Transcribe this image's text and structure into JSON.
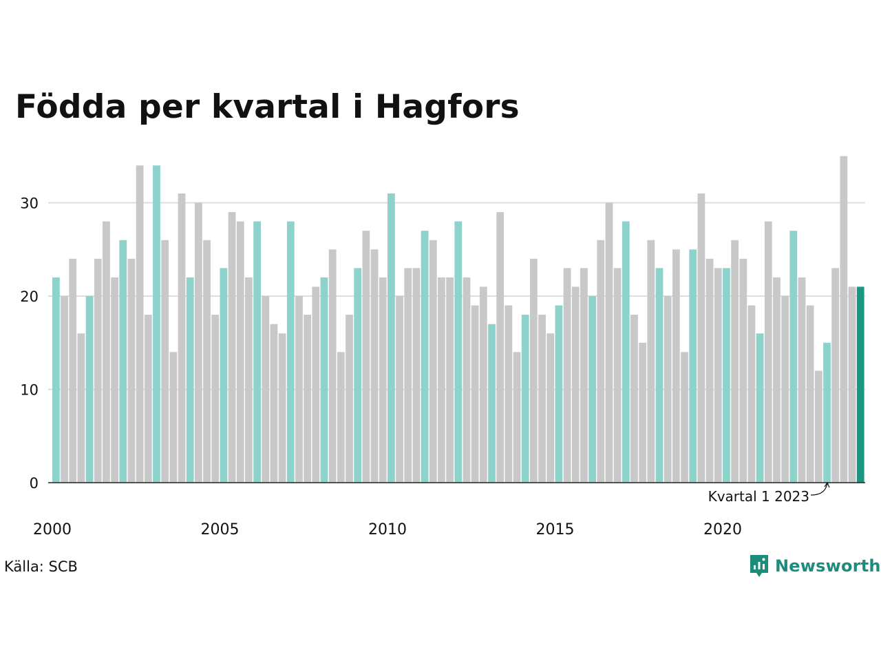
{
  "title": "Födda per kvartal i Hagfors",
  "source": "Källa: SCB",
  "brand": "Newsworthy",
  "annotation": "Kvartal 1 2023",
  "colors": {
    "q1": "#8dd3cc",
    "other": "#c8c8c8",
    "highlight": "#1a9683",
    "brand": "#1c8c7c",
    "grid": "#dddddd",
    "axis": "#222222"
  },
  "chart_data": {
    "type": "bar",
    "title": "Födda per kvartal i Hagfors",
    "xlabel": "",
    "ylabel": "",
    "ylim": [
      0,
      35
    ],
    "yticks": [
      0,
      10,
      20,
      30
    ],
    "xtick_labels": [
      "2000",
      "2005",
      "2010",
      "2015",
      "2020"
    ],
    "grid": true,
    "start_year": 2000,
    "quarters_per_year": 4,
    "highlight_quarter": "Kvartal 1 2023",
    "values": [
      22,
      20,
      24,
      16,
      20,
      24,
      28,
      22,
      26,
      24,
      34,
      18,
      34,
      26,
      14,
      31,
      22,
      30,
      26,
      18,
      23,
      29,
      28,
      22,
      28,
      20,
      17,
      16,
      28,
      20,
      18,
      21,
      22,
      25,
      14,
      18,
      23,
      27,
      25,
      22,
      31,
      20,
      23,
      23,
      27,
      26,
      22,
      22,
      28,
      22,
      19,
      21,
      17,
      29,
      19,
      14,
      18,
      24,
      18,
      16,
      19,
      23,
      21,
      23,
      20,
      26,
      30,
      23,
      28,
      18,
      15,
      26,
      23,
      20,
      25,
      14,
      25,
      31,
      24,
      23,
      23,
      26,
      24,
      19,
      16,
      28,
      22,
      20,
      27,
      22,
      19,
      12,
      15,
      23,
      35,
      21,
      21
    ]
  }
}
